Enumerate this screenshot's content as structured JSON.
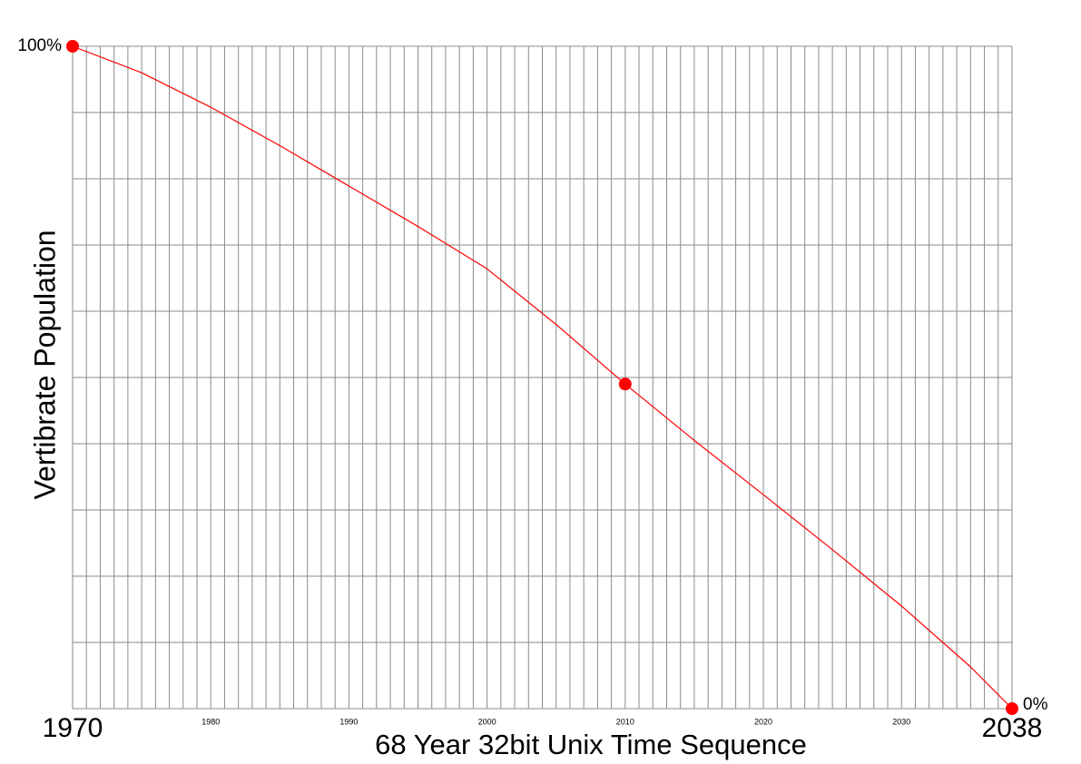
{
  "chart_data": {
    "type": "line",
    "x_label": "68 Year 32bit Unix Time Sequence",
    "y_label": "Vertibrate Population",
    "x": [
      1970,
      1975,
      1980,
      1985,
      1990,
      1995,
      2000,
      2005,
      2010,
      2015,
      2020,
      2025,
      2030,
      2035,
      2038
    ],
    "values": [
      100,
      96,
      90.8,
      85,
      78.9,
      72.8,
      66.4,
      58,
      49,
      40.5,
      32.3,
      24,
      15.5,
      6.3,
      0
    ],
    "color": "#ff0000",
    "points": {
      "x": [
        1970,
        2010,
        2038
      ],
      "values": [
        100,
        49,
        0
      ],
      "color": "#ff0000"
    },
    "xlim": [
      1970,
      2038
    ],
    "ylim": [
      0,
      100
    ],
    "xticks": [
      1970,
      1980,
      1990,
      2000,
      2010,
      2020,
      2030,
      2038
    ],
    "yticks": [
      {
        "value": 100,
        "label": "100%"
      },
      {
        "value": 0,
        "label": "0%"
      }
    ],
    "grid": {
      "x_step": 1,
      "y_step": 10
    }
  }
}
